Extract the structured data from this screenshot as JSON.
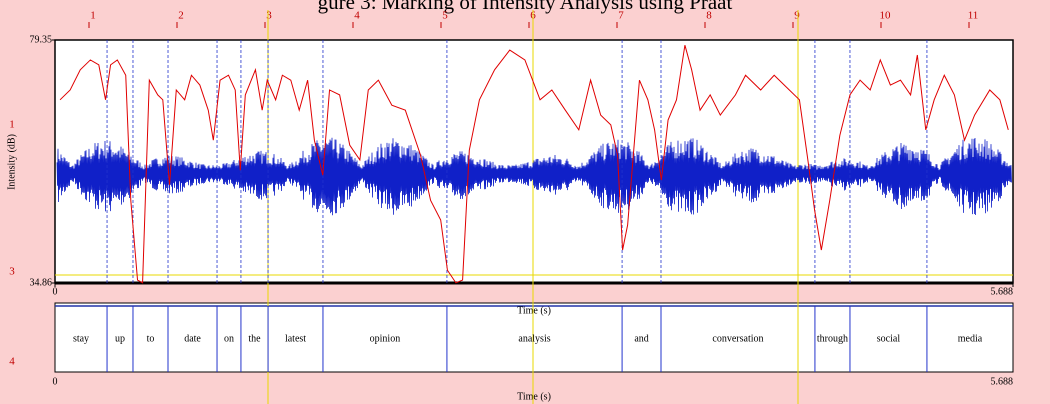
{
  "header": {
    "title": "gure 3: Marking of Intensity Analysis using Praat",
    "top_ruler": [
      "1",
      "2",
      "3",
      "4",
      "5",
      "6",
      "7",
      "8",
      "9",
      "10",
      "11"
    ],
    "left_ruler": [
      "1",
      "3",
      "4"
    ]
  },
  "chart_data": {
    "type": "line",
    "y_label": "Intensity (dB)",
    "x_label": "Time (s)",
    "xlim": [
      0,
      5.688
    ],
    "xticks": [
      0,
      5.688
    ],
    "ylim": [
      34.86,
      79.35
    ],
    "yticks": [
      79.35,
      34.86
    ],
    "x": [
      0.03,
      0.09,
      0.15,
      0.21,
      0.26,
      0.3,
      0.33,
      0.37,
      0.42,
      0.45,
      0.49,
      0.52,
      0.56,
      0.61,
      0.64,
      0.68,
      0.72,
      0.77,
      0.81,
      0.86,
      0.91,
      0.94,
      0.98,
      1.03,
      1.07,
      1.1,
      1.13,
      1.19,
      1.23,
      1.26,
      1.31,
      1.35,
      1.4,
      1.45,
      1.5,
      1.54,
      1.59,
      1.63,
      1.69,
      1.75,
      1.81,
      1.86,
      1.92,
      2.0,
      2.08,
      2.17,
      2.23,
      2.29,
      2.33,
      2.38,
      2.42,
      2.46,
      2.52,
      2.61,
      2.7,
      2.79,
      2.88,
      2.95,
      3.03,
      3.11,
      3.18,
      3.24,
      3.3,
      3.34,
      3.37,
      3.4,
      3.47,
      3.52,
      3.56,
      3.6,
      3.64,
      3.69,
      3.74,
      3.78,
      3.83,
      3.89,
      3.95,
      4.04,
      4.1,
      4.19,
      4.27,
      4.36,
      4.42,
      4.47,
      4.51,
      4.55,
      4.6,
      4.66,
      4.72,
      4.78,
      4.84,
      4.9,
      4.96,
      5.02,
      5.08,
      5.12,
      5.17,
      5.22,
      5.28,
      5.34,
      5.4,
      5.46,
      5.55,
      5.61,
      5.66
    ],
    "series": [
      {
        "name": "Intensity",
        "color": "#e00000",
        "values": [
          68.4,
          70.2,
          73.9,
          75.7,
          74.8,
          68.4,
          74.8,
          75.7,
          72.9,
          50.0,
          35.4,
          34.9,
          72.0,
          69.3,
          68.4,
          52.8,
          70.2,
          68.4,
          72.9,
          71.1,
          66.5,
          61.0,
          72.0,
          72.9,
          70.2,
          55.5,
          69.3,
          73.9,
          66.5,
          72.0,
          68.4,
          72.9,
          72.0,
          66.5,
          72.0,
          61.0,
          54.6,
          70.2,
          69.3,
          60.1,
          57.4,
          70.2,
          72.0,
          67.4,
          66.5,
          58.3,
          50.0,
          46.4,
          37.2,
          34.9,
          35.4,
          59.2,
          68.4,
          73.9,
          77.5,
          75.7,
          68.4,
          70.2,
          66.5,
          62.9,
          72.0,
          65.6,
          63.8,
          58.3,
          40.9,
          45.5,
          72.0,
          68.4,
          62.9,
          53.7,
          64.7,
          68.4,
          78.4,
          73.9,
          66.5,
          69.3,
          65.6,
          69.3,
          72.9,
          70.2,
          72.9,
          70.2,
          68.4,
          57.4,
          48.2,
          40.9,
          50.0,
          61.9,
          69.3,
          72.0,
          70.2,
          75.7,
          71.1,
          72.0,
          69.3,
          76.6,
          62.9,
          68.4,
          72.9,
          69.3,
          61.0,
          65.6,
          70.2,
          68.4,
          62.9
        ]
      }
    ],
    "tier": {
      "words": [
        "stay",
        "up",
        "to",
        "date",
        "on",
        "the",
        "latest",
        "opinion",
        "analysis",
        "and",
        "conversation",
        "through",
        "social",
        "media"
      ],
      "boundaries": [
        0.309,
        0.463,
        0.671,
        0.962,
        1.104,
        1.265,
        1.591,
        2.327,
        3.367,
        3.598,
        4.512,
        4.72,
        5.177
      ]
    }
  }
}
